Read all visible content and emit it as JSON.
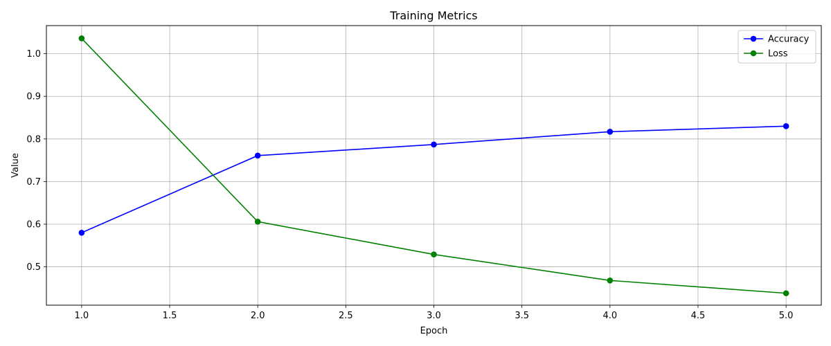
{
  "chart_data": {
    "type": "line",
    "title": "Training Metrics",
    "xlabel": "Epoch",
    "ylabel": "Value",
    "x": [
      1.0,
      2.0,
      3.0,
      4.0,
      5.0
    ],
    "xlim": [
      0.8,
      5.2
    ],
    "ylim": [
      0.41,
      1.066
    ],
    "xticks": [
      "1.0",
      "1.5",
      "2.0",
      "2.5",
      "3.0",
      "3.5",
      "4.0",
      "4.5",
      "5.0"
    ],
    "xtick_values": [
      1.0,
      1.5,
      2.0,
      2.5,
      3.0,
      3.5,
      4.0,
      4.5,
      5.0
    ],
    "yticks": [
      "0.5",
      "0.6",
      "0.7",
      "0.8",
      "0.9",
      "1.0"
    ],
    "ytick_values": [
      0.5,
      0.6,
      0.7,
      0.8,
      0.9,
      1.0
    ],
    "grid": true,
    "legend_position": "top-right",
    "series": [
      {
        "name": "Accuracy",
        "color": "#0000ff",
        "marker": "circle",
        "values": [
          0.58,
          0.761,
          0.787,
          0.817,
          0.83
        ]
      },
      {
        "name": "Loss",
        "color": "#008000",
        "marker": "circle",
        "values": [
          1.036,
          0.606,
          0.529,
          0.468,
          0.438
        ]
      }
    ]
  }
}
